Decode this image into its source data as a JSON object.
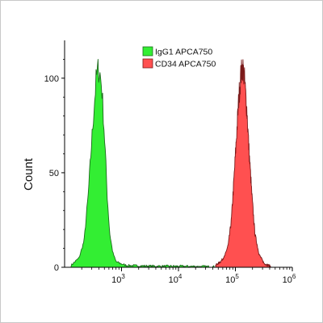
{
  "chart_data": {
    "type": "area",
    "title": "",
    "xlabel": "",
    "ylabel": "Count",
    "x_scale": "log",
    "xlim": [
      100,
      1000000
    ],
    "ylim": [
      0,
      120
    ],
    "x_ticks": [
      {
        "value": 1000,
        "label_base": "10",
        "label_exp": "3"
      },
      {
        "value": 10000,
        "label_base": "10",
        "label_exp": "4"
      },
      {
        "value": 100000,
        "label_base": "10",
        "label_exp": "5"
      },
      {
        "value": 1000000,
        "label_base": "10",
        "label_exp": "6"
      }
    ],
    "y_ticks": [
      {
        "value": 0,
        "label": "0"
      },
      {
        "value": 50,
        "label": "50"
      },
      {
        "value": 100,
        "label": "100"
      }
    ],
    "grid": false,
    "legend_position": "top-center",
    "series": [
      {
        "name": "IgG1 APCA750",
        "color": "#33ee33",
        "edge_color": "#1d6b1d",
        "x": [
          130,
          180,
          220,
          260,
          300,
          330,
          360,
          390,
          420,
          450,
          480,
          520,
          560,
          620,
          700,
          800,
          950,
          1200,
          2000,
          4000,
          8000,
          20000,
          45000
        ],
        "y": [
          1,
          5,
          14,
          38,
          67,
          85,
          100,
          105,
          102,
          95,
          80,
          60,
          38,
          18,
          8,
          3,
          2,
          1,
          0.8,
          0.6,
          0.6,
          0.5,
          0.3
        ]
      },
      {
        "name": "CD34 APCA750",
        "color": "#ff5050",
        "edge_color": "#7a1a1a",
        "x": [
          45000,
          55000,
          65000,
          75000,
          85000,
          95000,
          105000,
          115000,
          125000,
          135000,
          145000,
          160000,
          175000,
          195000,
          220000,
          260000,
          320000,
          420000
        ],
        "y": [
          1,
          3,
          6,
          12,
          25,
          48,
          70,
          90,
          102,
          106,
          99,
          82,
          60,
          38,
          18,
          7,
          2,
          0.5
        ]
      }
    ]
  }
}
